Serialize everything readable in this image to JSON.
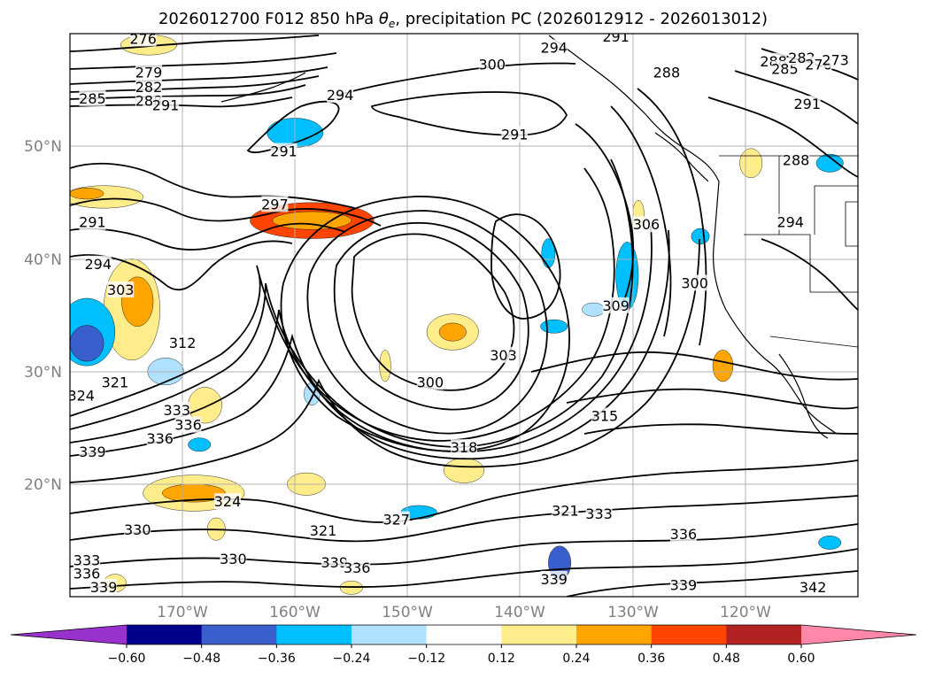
{
  "title": "2026012700 F012 850 hPa θe, precipitation PC (2026012912 - 2026013012)",
  "title_prefix": "2026012700 F012 850 hPa ",
  "title_symbol": "θ",
  "title_subscript": "e",
  "title_suffix": ", precipitation PC (2026012912 - 2026013012)",
  "map": {
    "lon_ticks": [
      "170°W",
      "160°W",
      "150°W",
      "140°W",
      "130°W",
      "120°W"
    ],
    "lat_ticks": [
      "50°N",
      "40°N",
      "30°N",
      "20°N"
    ],
    "extent_lon": [
      -180,
      -110
    ],
    "extent_lat": [
      10,
      60
    ]
  },
  "contour_labels": [
    {
      "text": "276",
      "lon": -173.5,
      "lat": 59.5
    },
    {
      "text": "279",
      "lon": -173,
      "lat": 56.5
    },
    {
      "text": "282",
      "lon": -173,
      "lat": 55.2
    },
    {
      "text": "285",
      "lon": -178,
      "lat": 54.2
    },
    {
      "text": "288",
      "lon": -173,
      "lat": 54.0
    },
    {
      "text": "291",
      "lon": -171.5,
      "lat": 53.6
    },
    {
      "text": "294",
      "lon": -156,
      "lat": 54.5
    },
    {
      "text": "300",
      "lon": -142.5,
      "lat": 57.2
    },
    {
      "text": "291",
      "lon": -140.5,
      "lat": 51.0
    },
    {
      "text": "291",
      "lon": -161,
      "lat": 49.5
    },
    {
      "text": "291",
      "lon": -178,
      "lat": 43.2
    },
    {
      "text": "294",
      "lon": -177.5,
      "lat": 39.5
    },
    {
      "text": "297",
      "lon": -161.8,
      "lat": 44.8
    },
    {
      "text": "303",
      "lon": -175.5,
      "lat": 37.2
    },
    {
      "text": "312",
      "lon": -170,
      "lat": 32.5
    },
    {
      "text": "321",
      "lon": -176,
      "lat": 29.0
    },
    {
      "text": "324",
      "lon": -179,
      "lat": 27.8
    },
    {
      "text": "333",
      "lon": -170.5,
      "lat": 26.5
    },
    {
      "text": "336",
      "lon": -169.5,
      "lat": 25.2
    },
    {
      "text": "336",
      "lon": -172,
      "lat": 24.0
    },
    {
      "text": "339",
      "lon": -178,
      "lat": 22.8
    },
    {
      "text": "324",
      "lon": -166,
      "lat": 18.4
    },
    {
      "text": "330",
      "lon": -174,
      "lat": 15.9
    },
    {
      "text": "321",
      "lon": -157.5,
      "lat": 15.8
    },
    {
      "text": "327",
      "lon": -151,
      "lat": 16.8
    },
    {
      "text": "330",
      "lon": -165.5,
      "lat": 13.3
    },
    {
      "text": "339",
      "lon": -156.5,
      "lat": 13.0
    },
    {
      "text": "336",
      "lon": -154.5,
      "lat": 12.5
    },
    {
      "text": "333",
      "lon": -178.5,
      "lat": 13.2
    },
    {
      "text": "336",
      "lon": -178.5,
      "lat": 12.0
    },
    {
      "text": "339",
      "lon": -177,
      "lat": 10.8
    },
    {
      "text": "300",
      "lon": -148,
      "lat": 29.0
    },
    {
      "text": "303",
      "lon": -141.5,
      "lat": 31.4
    },
    {
      "text": "318",
      "lon": -145,
      "lat": 23.2
    },
    {
      "text": "315",
      "lon": -132.5,
      "lat": 26.0
    },
    {
      "text": "309",
      "lon": -131.5,
      "lat": 35.8
    },
    {
      "text": "306",
      "lon": -128.8,
      "lat": 43.0
    },
    {
      "text": "300",
      "lon": -124.5,
      "lat": 37.8
    },
    {
      "text": "321",
      "lon": -136,
      "lat": 17.6
    },
    {
      "text": "333",
      "lon": -133,
      "lat": 17.3
    },
    {
      "text": "336",
      "lon": -125.5,
      "lat": 15.5
    },
    {
      "text": "339",
      "lon": -137,
      "lat": 11.5
    },
    {
      "text": "339",
      "lon": -125.5,
      "lat": 11.0
    },
    {
      "text": "342",
      "lon": -114,
      "lat": 10.8
    },
    {
      "text": "294",
      "lon": -137,
      "lat": 58.7
    },
    {
      "text": "291",
      "lon": -131.5,
      "lat": 59.7
    },
    {
      "text": "288",
      "lon": -127,
      "lat": 56.5
    },
    {
      "text": "288",
      "lon": -117.5,
      "lat": 57.5
    },
    {
      "text": "285",
      "lon": -116.5,
      "lat": 56.8
    },
    {
      "text": "282",
      "lon": -115,
      "lat": 57.8
    },
    {
      "text": "276",
      "lon": -113.5,
      "lat": 57.2
    },
    {
      "text": "273",
      "lon": -112,
      "lat": 57.6
    },
    {
      "text": "291",
      "lon": -114.5,
      "lat": 53.7
    },
    {
      "text": "288",
      "lon": -115.5,
      "lat": 48.7
    },
    {
      "text": "294",
      "lon": -116,
      "lat": 43.2
    }
  ],
  "colorbar": {
    "ticks": [
      "−0.60",
      "−0.48",
      "−0.36",
      "−0.24",
      "−0.12",
      "0.12",
      "0.24",
      "0.36",
      "0.48",
      "0.60"
    ],
    "colors": [
      "#9932cc",
      "#00008b",
      "#3a5fcd",
      "#00bfff",
      "#b0e2ff",
      "#ffffff",
      "#ffec8b",
      "#ffa500",
      "#ff4500",
      "#b22222",
      "#ff88aa"
    ]
  },
  "shading": [
    {
      "lon": -158.5,
      "lat": 43.4,
      "rx": 5.5,
      "ry": 1.6,
      "level": 3
    },
    {
      "lon": -158.5,
      "lat": 43.4,
      "rx": 3.5,
      "ry": 0.8,
      "level": 2
    },
    {
      "lon": -174.5,
      "lat": 35.5,
      "rx": 2.5,
      "ry": 4.5,
      "level": 1
    },
    {
      "lon": -174.0,
      "lat": 36.2,
      "rx": 1.4,
      "ry": 2.2,
      "level": 2
    },
    {
      "lon": -177.0,
      "lat": 45.5,
      "rx": 3.5,
      "ry": 1.0,
      "level": 1
    },
    {
      "lon": -178.5,
      "lat": 45.8,
      "rx": 1.5,
      "ry": 0.5,
      "level": 2
    },
    {
      "lon": -146.0,
      "lat": 33.5,
      "rx": 2.3,
      "ry": 1.6,
      "level": 1
    },
    {
      "lon": -146.0,
      "lat": 33.5,
      "rx": 1.2,
      "ry": 0.8,
      "level": 2
    },
    {
      "lon": -169.0,
      "lat": 19.2,
      "rx": 4.5,
      "ry": 1.6,
      "level": 1
    },
    {
      "lon": -169.0,
      "lat": 19.2,
      "rx": 2.8,
      "ry": 0.8,
      "level": 2
    },
    {
      "lon": -159.0,
      "lat": 20.0,
      "rx": 1.7,
      "ry": 1.0,
      "level": 1
    },
    {
      "lon": -145.0,
      "lat": 21.2,
      "rx": 1.8,
      "ry": 1.1,
      "level": 1
    },
    {
      "lon": -178.5,
      "lat": 33.5,
      "rx": 2.5,
      "ry": 3.0,
      "level": -2
    },
    {
      "lon": -178.5,
      "lat": 32.5,
      "rx": 1.5,
      "ry": 1.6,
      "level": -3
    },
    {
      "lon": -160.0,
      "lat": 51.2,
      "rx": 2.5,
      "ry": 1.3,
      "level": -2
    },
    {
      "lon": -130.5,
      "lat": 38.5,
      "rx": 1.0,
      "ry": 3.0,
      "level": -2
    },
    {
      "lon": -173.0,
      "lat": 59.0,
      "rx": 2.5,
      "ry": 0.9,
      "level": 1
    },
    {
      "lon": -119.5,
      "lat": 48.5,
      "rx": 1.0,
      "ry": 1.3,
      "level": 1
    },
    {
      "lon": -122.0,
      "lat": 30.5,
      "rx": 0.9,
      "ry": 1.4,
      "level": 2
    },
    {
      "lon": -155.0,
      "lat": 10.8,
      "rx": 1.0,
      "ry": 0.6,
      "level": 1
    },
    {
      "lon": -136.5,
      "lat": 13.0,
      "rx": 1.0,
      "ry": 1.5,
      "level": -3
    },
    {
      "lon": -149.0,
      "lat": 17.5,
      "rx": 1.6,
      "ry": 0.6,
      "level": -2
    },
    {
      "lon": -112.5,
      "lat": 48.5,
      "rx": 1.2,
      "ry": 0.8,
      "level": -2
    },
    {
      "lon": -112.5,
      "lat": 14.8,
      "rx": 1.0,
      "ry": 0.6,
      "level": -2
    },
    {
      "lon": -171.5,
      "lat": 30.0,
      "rx": 1.6,
      "ry": 1.2,
      "level": -1
    },
    {
      "lon": -168.0,
      "lat": 27.0,
      "rx": 1.5,
      "ry": 1.6,
      "level": 1
    },
    {
      "lon": -168.5,
      "lat": 23.5,
      "rx": 1.0,
      "ry": 0.6,
      "level": -2
    },
    {
      "lon": -167.0,
      "lat": 16.0,
      "rx": 0.8,
      "ry": 1.0,
      "level": 1
    },
    {
      "lon": -176.0,
      "lat": 11.2,
      "rx": 1.0,
      "ry": 0.8,
      "level": 1
    },
    {
      "lon": -152.0,
      "lat": 30.5,
      "rx": 0.5,
      "ry": 1.4,
      "level": 1
    },
    {
      "lon": -137.5,
      "lat": 40.5,
      "rx": 0.6,
      "ry": 1.3,
      "level": -2
    },
    {
      "lon": -129.5,
      "lat": 44.0,
      "rx": 0.5,
      "ry": 1.2,
      "level": 1
    },
    {
      "lon": -137.0,
      "lat": 34.0,
      "rx": 1.2,
      "ry": 0.6,
      "level": -2
    },
    {
      "lon": -124.0,
      "lat": 42.0,
      "rx": 0.8,
      "ry": 0.7,
      "level": -2
    },
    {
      "lon": -158.5,
      "lat": 28.0,
      "rx": 0.7,
      "ry": 1.0,
      "level": -1
    },
    {
      "lon": -133.5,
      "lat": 35.5,
      "rx": 1.0,
      "ry": 0.6,
      "level": -1
    }
  ]
}
